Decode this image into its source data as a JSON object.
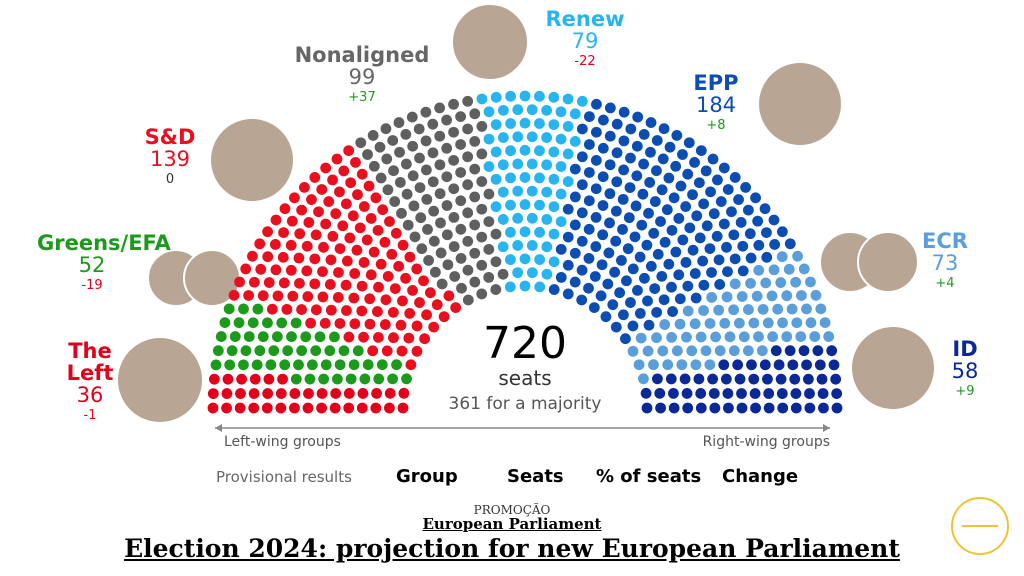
{
  "chart_data": {
    "type": "hemicycle",
    "categories": [
      "The Left",
      "Greens/EFA",
      "S&D",
      "Nonaligned",
      "Renew",
      "EPP",
      "ECR",
      "ID"
    ],
    "values": [
      36,
      52,
      139,
      99,
      79,
      184,
      73,
      58
    ],
    "changes": [
      -1,
      -19,
      0,
      37,
      -22,
      8,
      4,
      9
    ],
    "change_labels": [
      "-1",
      "-19",
      "0",
      "+37",
      "-22",
      "+8",
      "+4",
      "+9"
    ],
    "colors": [
      "#e2001a",
      "#1c9a1c",
      "#e8101e",
      "#5f5f5f",
      "#28b4ee",
      "#0b4db0",
      "#5b9fda",
      "#0a2896"
    ],
    "total": 720,
    "total_label": "seats",
    "majority_label": "361 for a majority",
    "left_label": "Left-wing groups",
    "right_label": "Right-wing groups",
    "table_headers": [
      "Provisional results",
      "Group",
      "Seats",
      "% of seats",
      "Change"
    ],
    "kicker": "PROMOÇÃO",
    "subtitle": "European Parliament",
    "title": "Election 2024: projection for new European Parliament"
  }
}
